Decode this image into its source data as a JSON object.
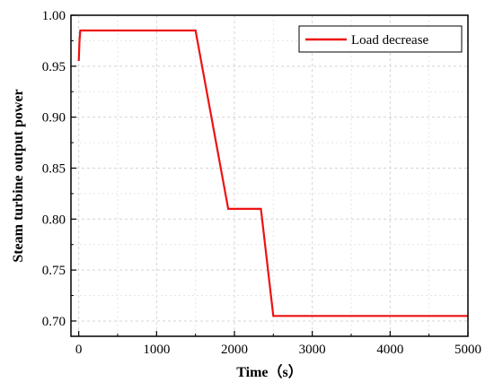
{
  "chart_data": {
    "type": "line",
    "xlabel": "Time（s）",
    "ylabel": "Steam turbine output power",
    "xlim": [
      -100,
      5000
    ],
    "ylim": [
      0.685,
      1.0
    ],
    "x_ticks": [
      0,
      1000,
      2000,
      3000,
      4000,
      5000
    ],
    "x_tick_labels": [
      "0",
      "1000",
      "2000",
      "3000",
      "4000",
      "5000"
    ],
    "y_ticks": [
      0.7,
      0.75,
      0.8,
      0.85,
      0.9,
      0.95,
      1.0
    ],
    "y_tick_labels": [
      "0.70",
      "0.75",
      "0.80",
      "0.85",
      "0.90",
      "0.95",
      "1.00"
    ],
    "grid": true,
    "legend_position": "top-right",
    "series": [
      {
        "name": "Load decrease",
        "color": "#ee1111",
        "x": [
          0,
          10,
          20,
          1500,
          1920,
          2340,
          2500,
          5000
        ],
        "y": [
          0.955,
          0.975,
          0.985,
          0.985,
          0.81,
          0.81,
          0.705,
          0.705
        ]
      }
    ]
  }
}
